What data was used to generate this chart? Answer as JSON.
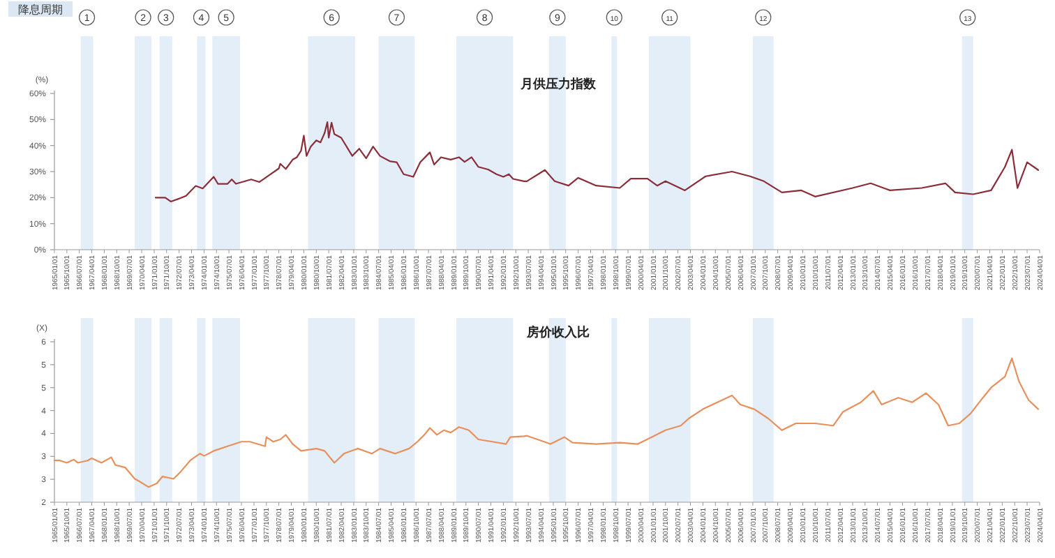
{
  "chart_data": [
    {
      "type": "line",
      "title": "月供压力指数",
      "ylabel": "(%)",
      "annotations": [
        "降息周期"
      ],
      "xlim": [
        "1965-01-01",
        "2024-04-01"
      ],
      "ylim": [
        0,
        60
      ],
      "yticks": [
        {
          "value": 0,
          "label": "0%"
        },
        {
          "value": 10,
          "label": "10%"
        },
        {
          "value": 20,
          "label": "20%"
        },
        {
          "value": 30,
          "label": "30%"
        },
        {
          "value": 40,
          "label": "40%"
        },
        {
          "value": 50,
          "label": "50%"
        },
        {
          "value": 60,
          "label": "60%"
        }
      ],
      "xticks": [
        {
          "value": "1965-01-01",
          "label": "1965/01/01"
        },
        {
          "value": "1965-10-01",
          "label": "1965/10/01"
        },
        {
          "value": "1966-07-01",
          "label": "1966/07/01"
        },
        {
          "value": "1967-04-01",
          "label": "1967/04/01"
        },
        {
          "value": "1968-01-01",
          "label": "1968/01/01"
        },
        {
          "value": "1968-10-01",
          "label": "1968/10/01"
        },
        {
          "value": "1969-07-01",
          "label": "1969/07/01"
        },
        {
          "value": "1970-04-01",
          "label": "1970/04/01"
        },
        {
          "value": "1971-01-01",
          "label": "1971/01/01"
        },
        {
          "value": "1971-10-01",
          "label": "1971/10/01"
        },
        {
          "value": "1972-07-01",
          "label": "1972/07/01"
        },
        {
          "value": "1973-04-01",
          "label": "1973/04/01"
        },
        {
          "value": "1974-01-01",
          "label": "1974/01/01"
        },
        {
          "value": "1974-10-01",
          "label": "1974/10/01"
        },
        {
          "value": "1975-07-01",
          "label": "1975/07/01"
        },
        {
          "value": "1976-04-01",
          "label": "1976/04/01"
        },
        {
          "value": "1977-01-01",
          "label": "1977/01/01"
        },
        {
          "value": "1977-10-01",
          "label": "1977/10/01"
        },
        {
          "value": "1978-07-01",
          "label": "1978/07/01"
        },
        {
          "value": "1979-04-01",
          "label": "1979/04/01"
        },
        {
          "value": "1980-01-01",
          "label": "1980/01/01"
        },
        {
          "value": "1980-10-01",
          "label": "1980/10/01"
        },
        {
          "value": "1981-07-01",
          "label": "1981/07/01"
        },
        {
          "value": "1982-04-01",
          "label": "1982/04/01"
        },
        {
          "value": "1983-01-01",
          "label": "1983/01/01"
        },
        {
          "value": "1983-10-01",
          "label": "1983/10/01"
        },
        {
          "value": "1984-07-01",
          "label": "1984/07/01"
        },
        {
          "value": "1985-04-01",
          "label": "1985/04/01"
        },
        {
          "value": "1986-01-01",
          "label": "1986/01/01"
        },
        {
          "value": "1986-10-01",
          "label": "1986/10/01"
        },
        {
          "value": "1987-07-01",
          "label": "1987/07/01"
        },
        {
          "value": "1988-04-01",
          "label": "1988/04/01"
        },
        {
          "value": "1989-01-01",
          "label": "1989/01/01"
        },
        {
          "value": "1989-10-01",
          "label": "1989/10/01"
        },
        {
          "value": "1990-07-01",
          "label": "1990/07/01"
        },
        {
          "value": "1991-04-01",
          "label": "1991/04/01"
        },
        {
          "value": "1992-01-01",
          "label": "1992/01/01"
        },
        {
          "value": "1992-10-01",
          "label": "1992/10/01"
        },
        {
          "value": "1993-07-01",
          "label": "1993/07/01"
        },
        {
          "value": "1994-04-01",
          "label": "1994/04/01"
        },
        {
          "value": "1995-01-01",
          "label": "1995/01/01"
        },
        {
          "value": "1995-10-01",
          "label": "1995/10/01"
        },
        {
          "value": "1996-07-01",
          "label": "1996/07/01"
        },
        {
          "value": "1997-04-01",
          "label": "1997/04/01"
        },
        {
          "value": "1998-01-01",
          "label": "1998/01/01"
        },
        {
          "value": "1998-10-01",
          "label": "1998/10/01"
        },
        {
          "value": "1999-07-01",
          "label": "1999/07/01"
        },
        {
          "value": "2000-04-01",
          "label": "2000/04/01"
        },
        {
          "value": "2001-01-01",
          "label": "2001/01/01"
        },
        {
          "value": "2001-10-01",
          "label": "2001/10/01"
        },
        {
          "value": "2002-07-01",
          "label": "2002/07/01"
        },
        {
          "value": "2003-04-01",
          "label": "2003/04/01"
        },
        {
          "value": "2004-01-01",
          "label": "2004/01/01"
        },
        {
          "value": "2004-10-01",
          "label": "2004/10/01"
        },
        {
          "value": "2005-07-01",
          "label": "2005/07/01"
        },
        {
          "value": "2006-04-01",
          "label": "2006/04/01"
        },
        {
          "value": "2007-01-01",
          "label": "2007/01/01"
        },
        {
          "value": "2007-10-01",
          "label": "2007/10/01"
        },
        {
          "value": "2008-07-01",
          "label": "2008/07/01"
        },
        {
          "value": "2009-04-01",
          "label": "2009/04/01"
        },
        {
          "value": "2010-01-01",
          "label": "2010/01/01"
        },
        {
          "value": "2010-10-01",
          "label": "2010/10/01"
        },
        {
          "value": "2011-07-01",
          "label": "2011/07/01"
        },
        {
          "value": "2012-04-01",
          "label": "2012/04/01"
        },
        {
          "value": "2013-01-01",
          "label": "2013/01/01"
        },
        {
          "value": "2013-10-01",
          "label": "2013/10/01"
        },
        {
          "value": "2014-07-01",
          "label": "2014/07/01"
        },
        {
          "value": "2015-04-01",
          "label": "2015/04/01"
        },
        {
          "value": "2016-01-01",
          "label": "2016/01/01"
        },
        {
          "value": "2016-10-01",
          "label": "2016/10/01"
        },
        {
          "value": "2017-07-01",
          "label": "2017/07/01"
        },
        {
          "value": "2018-04-01",
          "label": "2018/04/01"
        },
        {
          "value": "2019-01-01",
          "label": "2019/01/01"
        },
        {
          "value": "2019-10-01",
          "label": "2019/10/01"
        },
        {
          "value": "2020-07-01",
          "label": "2020/07/01"
        },
        {
          "value": "2021-04-01",
          "label": "2021/04/01"
        },
        {
          "value": "2022-01-01",
          "label": "2022/01/01"
        },
        {
          "value": "2022-10-01",
          "label": "2022/10/01"
        },
        {
          "value": "2023-07-01",
          "label": "2023/07/01"
        },
        {
          "value": "2024-04-01",
          "label": "2024/04/01"
        }
      ],
      "bands": [
        {
          "axis": "x",
          "from": "1966-08",
          "to": "1967-05",
          "label": "1",
          "color": "#e3eef8"
        },
        {
          "axis": "x",
          "from": "1969-11",
          "to": "1970-11",
          "label": "2",
          "color": "#e3eef8"
        },
        {
          "axis": "x",
          "from": "1971-05",
          "to": "1972-02",
          "label": "3",
          "color": "#e3eef8"
        },
        {
          "axis": "x",
          "from": "1973-08",
          "to": "1974-02",
          "label": "4",
          "color": "#e3eef8"
        },
        {
          "axis": "x",
          "from": "1974-07",
          "to": "1976-03",
          "label": "5",
          "color": "#e3eef8"
        },
        {
          "axis": "x",
          "from": "1980-04",
          "to": "1983-02",
          "label": "6",
          "color": "#e3eef8"
        },
        {
          "axis": "x",
          "from": "1984-07",
          "to": "1986-09",
          "label": "7",
          "color": "#e3eef8"
        },
        {
          "axis": "x",
          "from": "1989-03",
          "to": "1992-08",
          "label": "8",
          "color": "#e3eef8"
        },
        {
          "axis": "x",
          "from": "1994-10",
          "to": "1995-10",
          "label": "9",
          "color": "#e3eef8"
        },
        {
          "axis": "x",
          "from": "1998-07",
          "to": "1998-11",
          "label": "10",
          "color": "#e3eef8"
        },
        {
          "axis": "x",
          "from": "2000-10",
          "to": "2003-04",
          "label": "11",
          "color": "#e3eef8"
        },
        {
          "axis": "x",
          "from": "2007-01",
          "to": "2008-04",
          "label": "12",
          "color": "#e3eef8"
        },
        {
          "axis": "x",
          "from": "2019-08",
          "to": "2020-04",
          "label": "13",
          "color": "#e3eef8"
        }
      ],
      "series": [
        {
          "color": "#8b2d38",
          "x": [
            "1971-02",
            "1971-09",
            "1972-01",
            "1972-08",
            "1972-12",
            "1973-07",
            "1973-12",
            "1974-08",
            "1974-11",
            "1975-06",
            "1975-09",
            "1975-12",
            "1976-11",
            "1977-05",
            "1977-12",
            "1978-07",
            "1978-08",
            "1978-12",
            "1979-05",
            "1979-08",
            "1979-11",
            "1980-01",
            "1980-03",
            "1980-06",
            "1980-10",
            "1981-01",
            "1981-04",
            "1981-06",
            "1981-07",
            "1981-09",
            "1981-11",
            "1982-04",
            "1982-12",
            "1983-05",
            "1983-10",
            "1984-03",
            "1984-08",
            "1985-03",
            "1985-08",
            "1986-01",
            "1986-08",
            "1987-01",
            "1987-08",
            "1987-11",
            "1988-04",
            "1988-11",
            "1989-05",
            "1989-09",
            "1990-02",
            "1990-07",
            "1991-02",
            "1991-08",
            "1992-01",
            "1992-05",
            "1992-08",
            "1993-04",
            "1993-06",
            "1994-07",
            "1995-02",
            "1995-12",
            "1996-07",
            "1997-08",
            "1999-01",
            "1999-09",
            "2000-09",
            "2001-04",
            "2001-10",
            "2002-12",
            "2004-03",
            "2005-10",
            "2006-11",
            "2007-09",
            "2008-10",
            "2009-12",
            "2010-10",
            "2013-01",
            "2014-02",
            "2015-04",
            "2017-03",
            "2018-08",
            "2019-03",
            "2020-04",
            "2021-05",
            "2022-03",
            "2022-08",
            "2022-12",
            "2023-07",
            "2024-03"
          ],
          "values": [
            20,
            20,
            18.5,
            19.8,
            20.7,
            24.5,
            23.5,
            28,
            25.3,
            25.3,
            27,
            25.3,
            27,
            26,
            28.6,
            31.2,
            33,
            31,
            34.6,
            35.5,
            38,
            43.8,
            36,
            39.6,
            42,
            41.2,
            44.8,
            49,
            43,
            48.8,
            44.4,
            43,
            36,
            38.8,
            35.1,
            39.6,
            36,
            34,
            33.6,
            29,
            28,
            33.6,
            37.4,
            32.7,
            35.5,
            34.6,
            35.5,
            33.7,
            35.5,
            31.8,
            30.8,
            29,
            28,
            29,
            27.2,
            26.3,
            26.3,
            30.6,
            26.3,
            24.6,
            27.6,
            24.6,
            23.7,
            27.3,
            27.3,
            24.6,
            26.3,
            22.8,
            28.2,
            30,
            28.2,
            26.3,
            22,
            22.8,
            20.4,
            23.7,
            25.5,
            22.8,
            23.7,
            25.5,
            22,
            21.3,
            22.8,
            31.8,
            38.4,
            23.7,
            33.6,
            30.6
          ]
        }
      ]
    },
    {
      "type": "line",
      "title": "房价收入比",
      "ylabel": "(X)",
      "xlim": [
        "1965-01-01",
        "2024-04-01"
      ],
      "ylim": [
        2.5,
        6
      ],
      "yticks": [
        {
          "value": 2.5,
          "label": "2"
        },
        {
          "value": 3,
          "label": "3"
        },
        {
          "value": 3.5,
          "label": "3"
        },
        {
          "value": 4,
          "label": "4"
        },
        {
          "value": 4.5,
          "label": "4"
        },
        {
          "value": 5,
          "label": "5"
        },
        {
          "value": 5.5,
          "label": "5"
        },
        {
          "value": 6,
          "label": "6"
        }
      ],
      "xticks": [
        {
          "value": "1965-01-01",
          "label": "1965/01/01"
        },
        {
          "value": "1965-10-01",
          "label": "1965/10/01"
        },
        {
          "value": "1966-07-01",
          "label": "1966/07/01"
        },
        {
          "value": "1967-04-01",
          "label": "1967/04/01"
        },
        {
          "value": "1968-01-01",
          "label": "1968/01/01"
        },
        {
          "value": "1968-10-01",
          "label": "1968/10/01"
        },
        {
          "value": "1969-07-01",
          "label": "1969/07/01"
        },
        {
          "value": "1970-04-01",
          "label": "1970/04/01"
        },
        {
          "value": "1971-01-01",
          "label": "1971/01/01"
        },
        {
          "value": "1971-10-01",
          "label": "1971/10/01"
        },
        {
          "value": "1972-07-01",
          "label": "1972/07/01"
        },
        {
          "value": "1973-04-01",
          "label": "1973/04/01"
        },
        {
          "value": "1974-01-01",
          "label": "1974/01/01"
        },
        {
          "value": "1974-10-01",
          "label": "1974/10/01"
        },
        {
          "value": "1975-07-01",
          "label": "1975/07/01"
        },
        {
          "value": "1976-04-01",
          "label": "1976/04/01"
        },
        {
          "value": "1977-01-01",
          "label": "1977/01/01"
        },
        {
          "value": "1977-10-01",
          "label": "1977/10/01"
        },
        {
          "value": "1978-07-01",
          "label": "1978/07/01"
        },
        {
          "value": "1979-04-01",
          "label": "1979/04/01"
        },
        {
          "value": "1980-01-01",
          "label": "1980/01/01"
        },
        {
          "value": "1980-10-01",
          "label": "1980/10/01"
        },
        {
          "value": "1981-07-01",
          "label": "1981/07/01"
        },
        {
          "value": "1982-04-01",
          "label": "1982/04/01"
        },
        {
          "value": "1983-01-01",
          "label": "1983/01/01"
        },
        {
          "value": "1983-10-01",
          "label": "1983/10/01"
        },
        {
          "value": "1984-07-01",
          "label": "1984/07/01"
        },
        {
          "value": "1985-04-01",
          "label": "1985/04/01"
        },
        {
          "value": "1986-01-01",
          "label": "1986/01/01"
        },
        {
          "value": "1986-10-01",
          "label": "1986/10/01"
        },
        {
          "value": "1987-07-01",
          "label": "1987/07/01"
        },
        {
          "value": "1988-04-01",
          "label": "1988/04/01"
        },
        {
          "value": "1989-01-01",
          "label": "1989/01/01"
        },
        {
          "value": "1989-10-01",
          "label": "1989/10/01"
        },
        {
          "value": "1990-07-01",
          "label": "1990/07/01"
        },
        {
          "value": "1991-04-01",
          "label": "1991/04/01"
        },
        {
          "value": "1992-01-01",
          "label": "1992/01/01"
        },
        {
          "value": "1992-10-01",
          "label": "1992/10/01"
        },
        {
          "value": "1993-07-01",
          "label": "1993/07/01"
        },
        {
          "value": "1994-04-01",
          "label": "1994/04/01"
        },
        {
          "value": "1995-01-01",
          "label": "1995/01/01"
        },
        {
          "value": "1995-10-01",
          "label": "1995/10/01"
        },
        {
          "value": "1996-07-01",
          "label": "1996/07/01"
        },
        {
          "value": "1997-04-01",
          "label": "1997/04/01"
        },
        {
          "value": "1998-01-01",
          "label": "1998/01/01"
        },
        {
          "value": "1998-10-01",
          "label": "1998/10/01"
        },
        {
          "value": "1999-07-01",
          "label": "1999/07/01"
        },
        {
          "value": "2000-04-01",
          "label": "2000/04/01"
        },
        {
          "value": "2001-01-01",
          "label": "2001/01/01"
        },
        {
          "value": "2001-10-01",
          "label": "2001/10/01"
        },
        {
          "value": "2002-07-01",
          "label": "2002/07/01"
        },
        {
          "value": "2003-04-01",
          "label": "2003/04/01"
        },
        {
          "value": "2004-01-01",
          "label": "2004/01/01"
        },
        {
          "value": "2004-10-01",
          "label": "2004/10/01"
        },
        {
          "value": "2005-07-01",
          "label": "2005/07/01"
        },
        {
          "value": "2006-04-01",
          "label": "2006/04/01"
        },
        {
          "value": "2007-01-01",
          "label": "2007/01/01"
        },
        {
          "value": "2007-10-01",
          "label": "2007/10/01"
        },
        {
          "value": "2008-07-01",
          "label": "2008/07/01"
        },
        {
          "value": "2009-04-01",
          "label": "2009/04/01"
        },
        {
          "value": "2010-01-01",
          "label": "2010/01/01"
        },
        {
          "value": "2010-10-01",
          "label": "2010/10/01"
        },
        {
          "value": "2011-07-01",
          "label": "2011/07/01"
        },
        {
          "value": "2012-04-01",
          "label": "2012/04/01"
        },
        {
          "value": "2013-01-01",
          "label": "2013/01/01"
        },
        {
          "value": "2013-10-01",
          "label": "2013/10/01"
        },
        {
          "value": "2014-07-01",
          "label": "2014/07/01"
        },
        {
          "value": "2015-04-01",
          "label": "2015/04/01"
        },
        {
          "value": "2016-01-01",
          "label": "2016/01/01"
        },
        {
          "value": "2016-10-01",
          "label": "2016/10/01"
        },
        {
          "value": "2017-07-01",
          "label": "2017/07/01"
        },
        {
          "value": "2018-04-01",
          "label": "2018/04/01"
        },
        {
          "value": "2019-01-01",
          "label": "2019/01/01"
        },
        {
          "value": "2019-10-01",
          "label": "2019/10/01"
        },
        {
          "value": "2020-07-01",
          "label": "2020/07/01"
        },
        {
          "value": "2021-04-01",
          "label": "2021/04/01"
        },
        {
          "value": "2022-01-01",
          "label": "2022/01/01"
        },
        {
          "value": "2022-10-01",
          "label": "2022/10/01"
        },
        {
          "value": "2023-07-01",
          "label": "2023/07/01"
        },
        {
          "value": "2024-04-01",
          "label": "2024/04/01"
        }
      ],
      "bands": [
        {
          "axis": "x",
          "from": "1966-08",
          "to": "1967-05",
          "color": "#e3eef8"
        },
        {
          "axis": "x",
          "from": "1969-11",
          "to": "1970-11",
          "color": "#e3eef8"
        },
        {
          "axis": "x",
          "from": "1971-05",
          "to": "1972-02",
          "color": "#e3eef8"
        },
        {
          "axis": "x",
          "from": "1973-08",
          "to": "1974-02",
          "color": "#e3eef8"
        },
        {
          "axis": "x",
          "from": "1974-07",
          "to": "1976-03",
          "color": "#e3eef8"
        },
        {
          "axis": "x",
          "from": "1980-04",
          "to": "1983-02",
          "color": "#e3eef8"
        },
        {
          "axis": "x",
          "from": "1984-07",
          "to": "1986-09",
          "color": "#e3eef8"
        },
        {
          "axis": "x",
          "from": "1989-03",
          "to": "1992-08",
          "color": "#e3eef8"
        },
        {
          "axis": "x",
          "from": "1994-10",
          "to": "1995-10",
          "color": "#e3eef8"
        },
        {
          "axis": "x",
          "from": "1998-07",
          "to": "1998-11",
          "color": "#e3eef8"
        },
        {
          "axis": "x",
          "from": "2000-10",
          "to": "2003-04",
          "color": "#e3eef8"
        },
        {
          "axis": "x",
          "from": "2007-01",
          "to": "2008-04",
          "color": "#e3eef8"
        },
        {
          "axis": "x",
          "from": "2019-08",
          "to": "2020-04",
          "color": "#e3eef8"
        }
      ],
      "series": [
        {
          "color": "#e8905c",
          "x": [
            "1965-01",
            "1965-05",
            "1965-10",
            "1966-03",
            "1966-06",
            "1967-01",
            "1967-04",
            "1967-11",
            "1968-06",
            "1968-09",
            "1969-04",
            "1969-11",
            "1970-02",
            "1970-09",
            "1971-03",
            "1971-07",
            "1972-03",
            "1972-08",
            "1973-03",
            "1973-10",
            "1974-01",
            "1974-08",
            "1975-06",
            "1976-04",
            "1976-10",
            "1977-09",
            "1977-10",
            "1978-03",
            "1978-08",
            "1978-12",
            "1979-05",
            "1979-11",
            "1980-10",
            "1981-04",
            "1981-11",
            "1982-06",
            "1983-04",
            "1984-02",
            "1984-08",
            "1985-07",
            "1986-05",
            "1986-11",
            "1987-04",
            "1987-08",
            "1988-01",
            "1988-06",
            "1988-11",
            "1989-05",
            "1989-12",
            "1990-07",
            "1991-05",
            "1992-03",
            "1992-06",
            "1993-04",
            "1993-06",
            "1994-11",
            "1995-09",
            "1996-03",
            "1997-08",
            "1999-01",
            "2000-02",
            "2000-12",
            "2001-10",
            "2002-09",
            "2003-03",
            "2004-01",
            "2005-03",
            "2005-10",
            "2006-04",
            "2007-02",
            "2007-12",
            "2008-10",
            "2009-08",
            "2010-10",
            "2011-11",
            "2012-06",
            "2013-07",
            "2014-04",
            "2014-10",
            "2015-10",
            "2016-08",
            "2017-06",
            "2018-03",
            "2018-10",
            "2019-06",
            "2020-02",
            "2020-11",
            "2021-05",
            "2022-03",
            "2022-08",
            "2022-10",
            "2023-01",
            "2023-08",
            "2024-03"
          ],
          "values": [
            3.41,
            3.41,
            3.36,
            3.43,
            3.36,
            3.41,
            3.46,
            3.36,
            3.48,
            3.31,
            3.26,
            3.01,
            2.96,
            2.83,
            2.91,
            3.06,
            3.01,
            3.16,
            3.41,
            3.56,
            3.51,
            3.62,
            3.72,
            3.82,
            3.82,
            3.72,
            3.92,
            3.82,
            3.87,
            3.97,
            3.77,
            3.62,
            3.67,
            3.62,
            3.36,
            3.56,
            3.67,
            3.56,
            3.67,
            3.56,
            3.67,
            3.82,
            3.97,
            4.12,
            3.97,
            4.07,
            4.02,
            4.14,
            4.07,
            3.87,
            3.82,
            3.77,
            3.92,
            3.94,
            3.95,
            3.77,
            3.92,
            3.8,
            3.77,
            3.8,
            3.77,
            3.92,
            4.07,
            4.17,
            4.33,
            4.53,
            4.73,
            4.83,
            4.63,
            4.53,
            4.33,
            4.07,
            4.22,
            4.22,
            4.17,
            4.47,
            4.68,
            4.93,
            4.63,
            4.78,
            4.68,
            4.88,
            4.63,
            4.17,
            4.22,
            4.43,
            4.78,
            5.0,
            5.24,
            5.64,
            5.44,
            5.14,
            4.73,
            4.53
          ]
        }
      ]
    }
  ]
}
